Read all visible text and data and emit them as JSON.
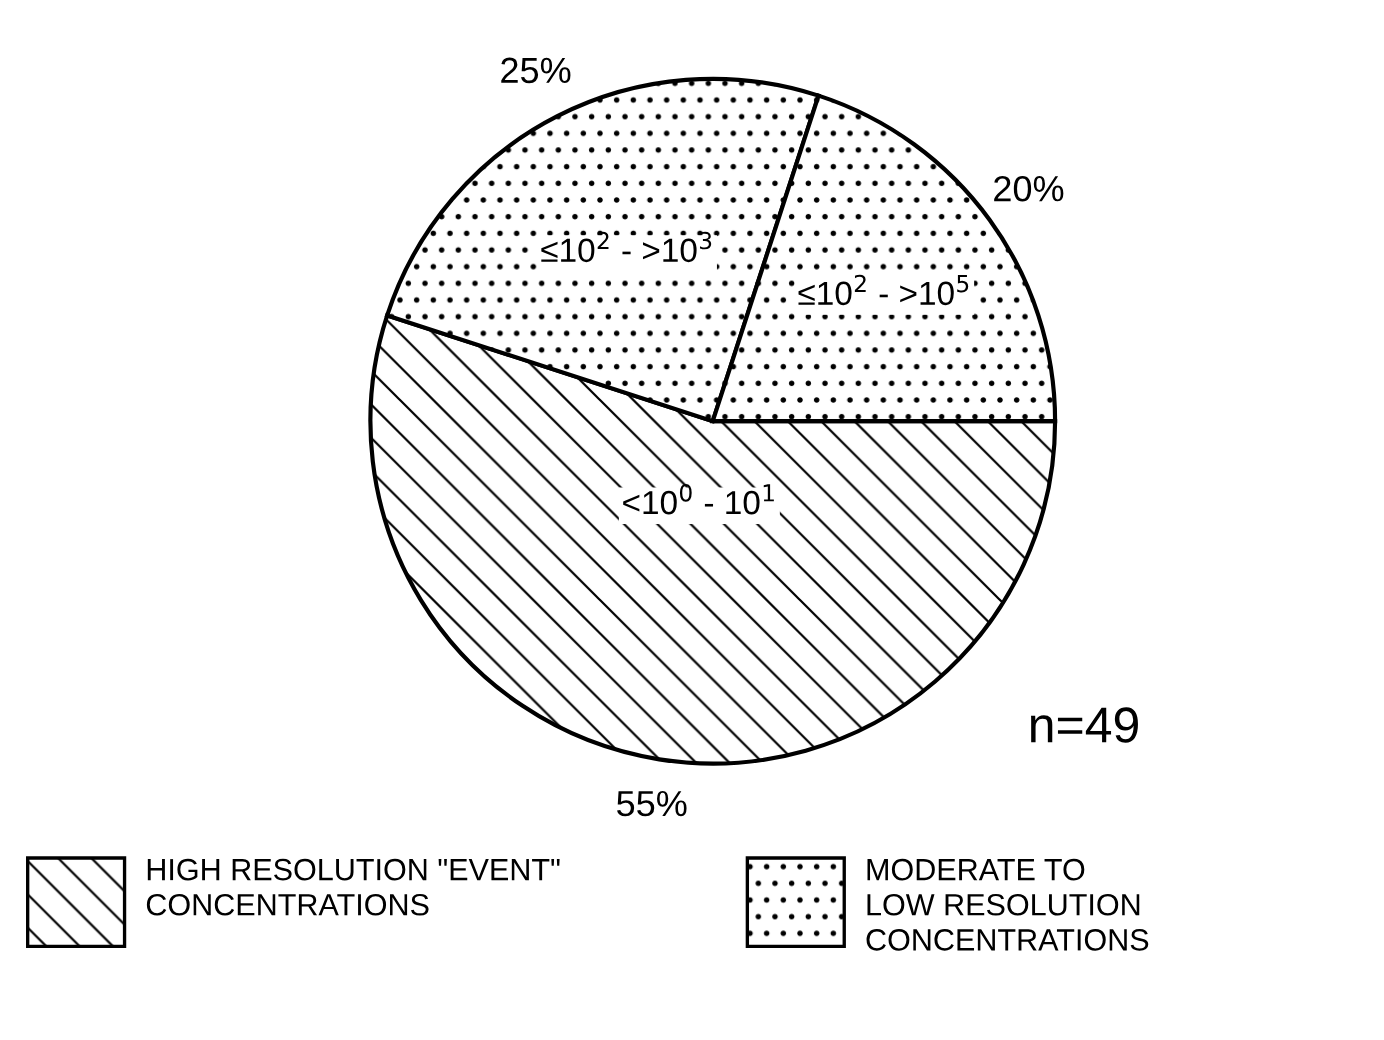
{
  "chart_data": {
    "type": "pie",
    "categories": [
      "<10$^{0}$ - 10$^{1}$",
      "≤10$^{2}$ - >10$^{3}$",
      "≤10$^{2}$ - >10$^{5}$"
    ],
    "values": [
      55,
      25,
      20
    ],
    "value_labels": [
      "55%",
      "25%",
      "20%"
    ],
    "colors": [
      "#000000",
      "#000000",
      "#000000"
    ],
    "annotations": [
      "n=49",
      "HIGH RESOLUTION \"EVENT\"\nCONCENTRATIONS",
      "MODERATE TO\nLOW RESOLUTION\nCONCENTRATIONS"
    ]
  }
}
